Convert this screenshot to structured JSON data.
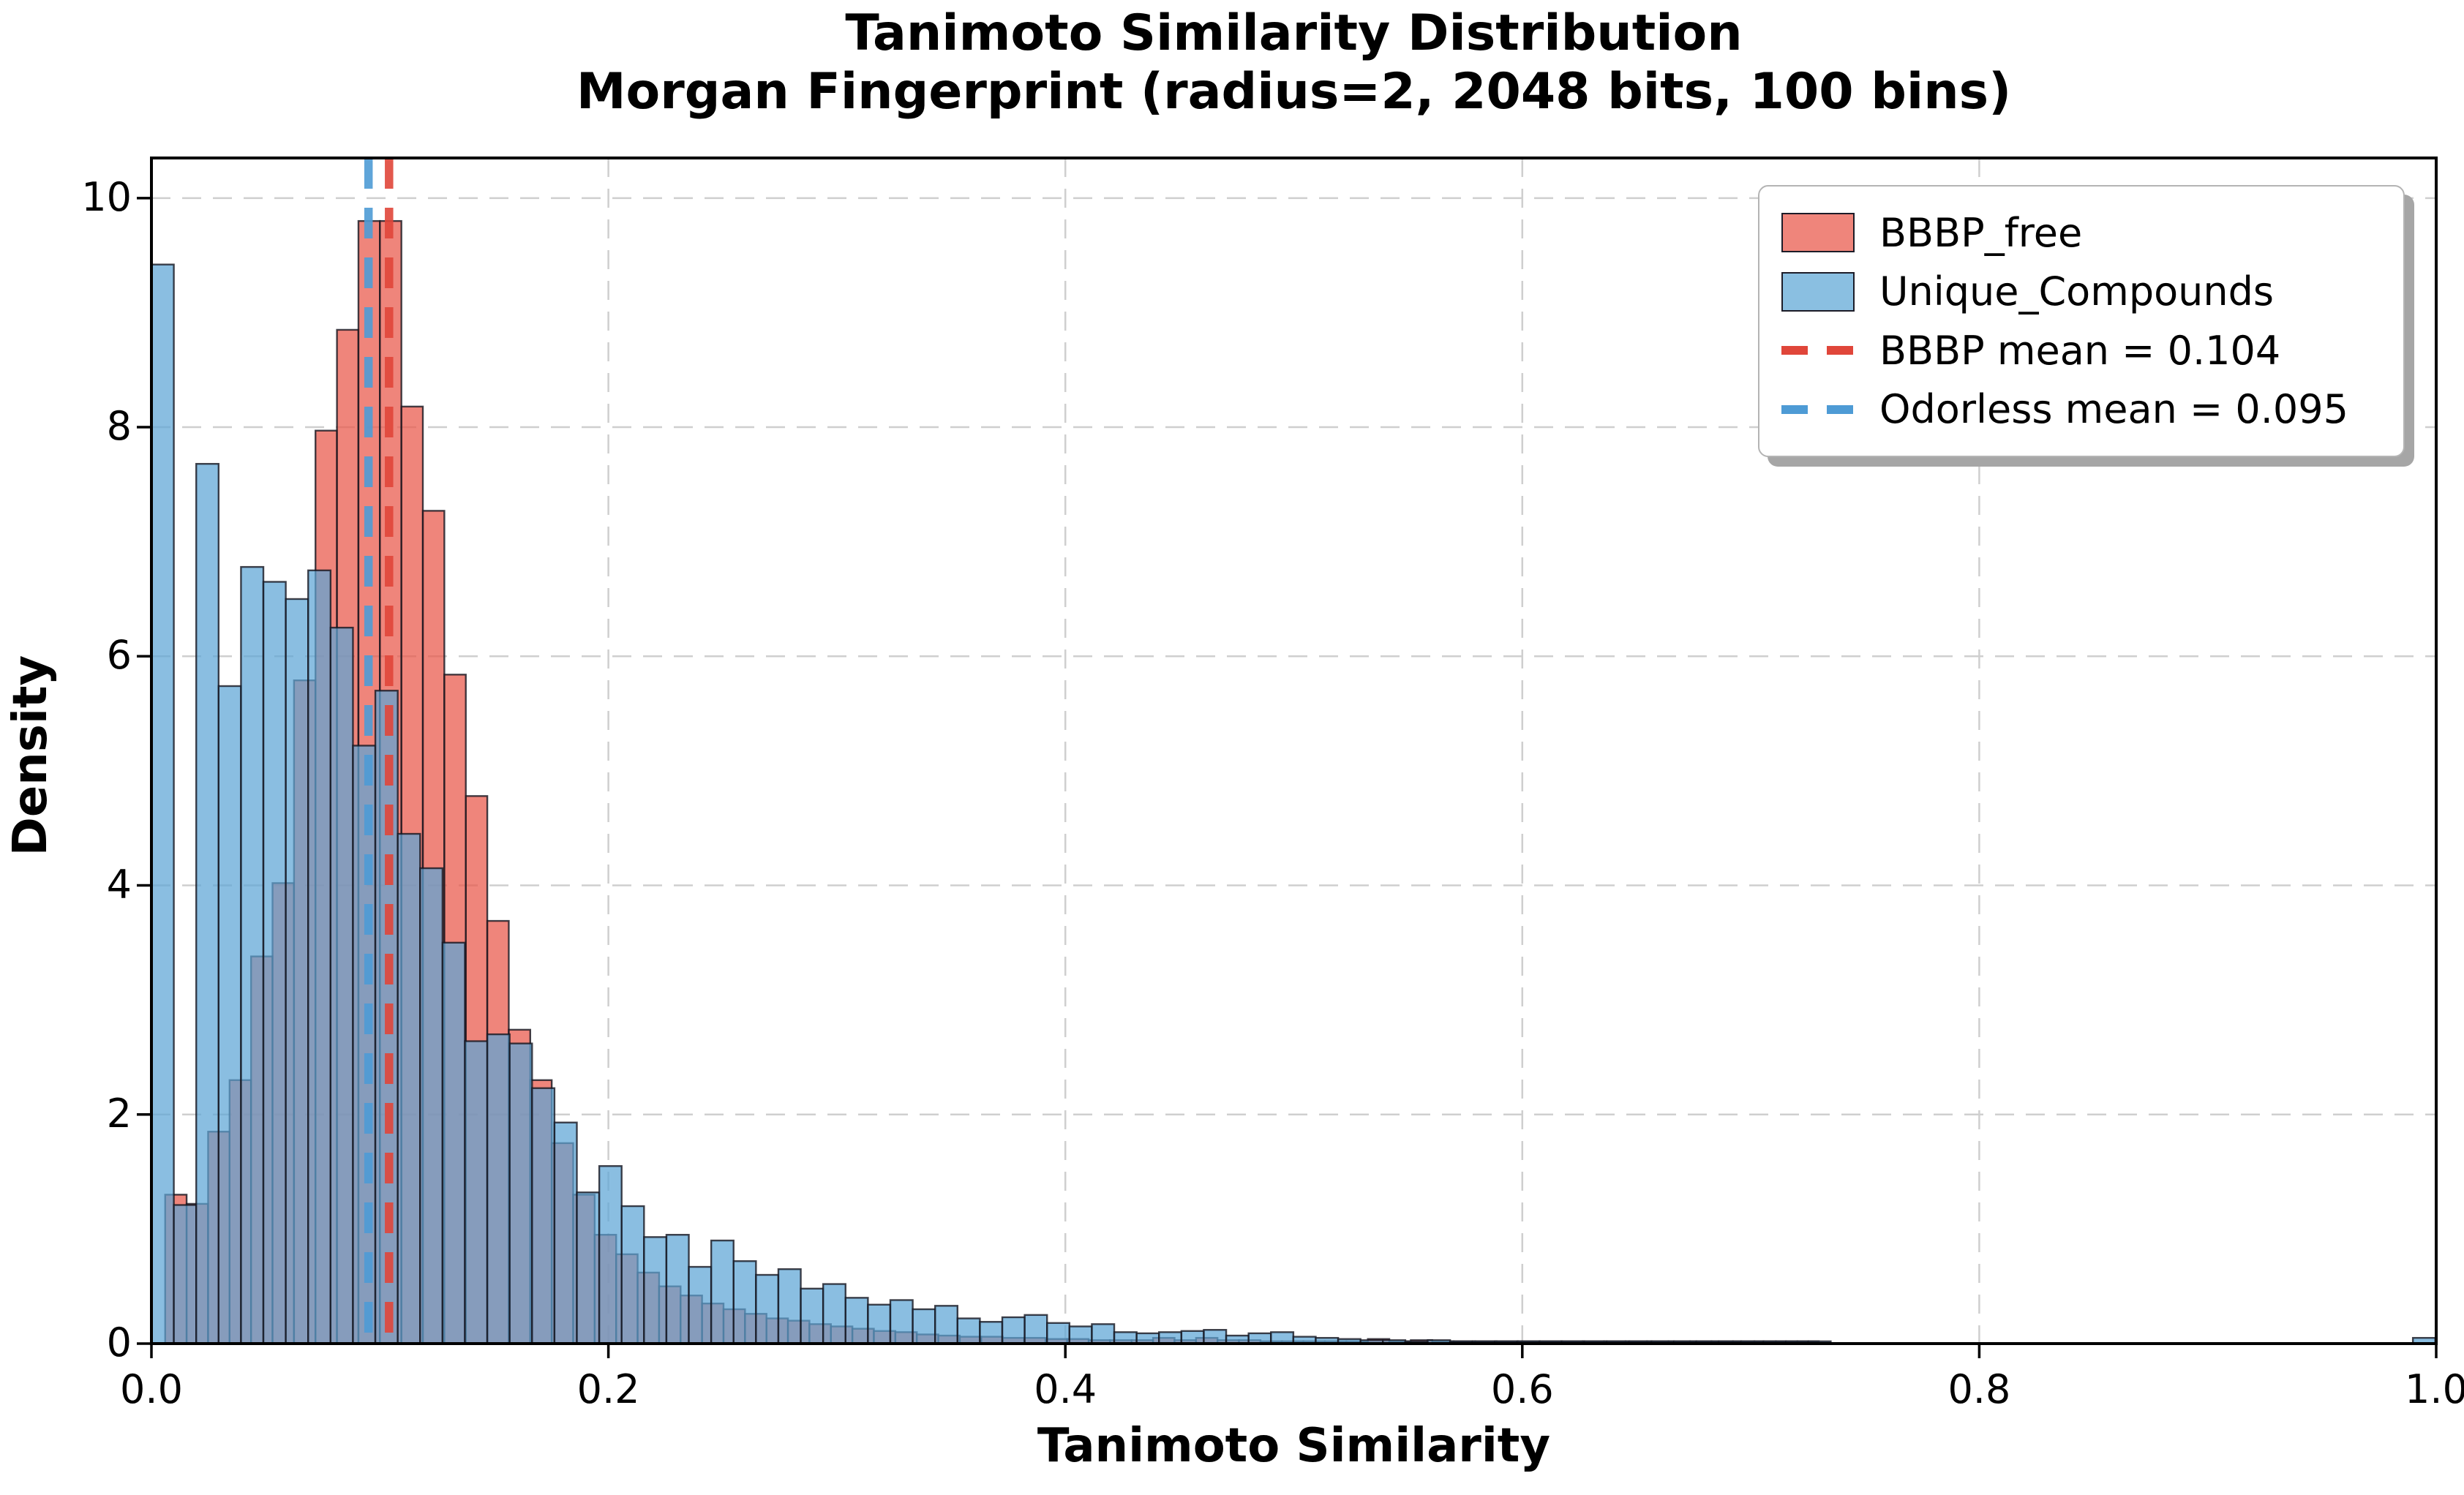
{
  "title": {
    "line1": "Tanimoto Similarity Distribution",
    "line2": "Morgan Fingerprint (radius=2, 2048 bits, 100 bins)"
  },
  "axes": {
    "xlabel": "Tanimoto Similarity",
    "ylabel": "Density",
    "x_tick_labels": [
      "0.0",
      "0.2",
      "0.4",
      "0.6",
      "0.8",
      "1.0"
    ],
    "x_tick_values": [
      0.0,
      0.2,
      0.4,
      0.6,
      0.8,
      1.0
    ],
    "y_tick_labels": [
      "0",
      "2",
      "4",
      "6",
      "8",
      "10"
    ],
    "y_tick_values": [
      0,
      2,
      4,
      6,
      8,
      10
    ],
    "xlim": [
      0.0,
      1.0
    ],
    "ylim": [
      0.0,
      10.35
    ],
    "grid": "dashed"
  },
  "legend": {
    "items": [
      {
        "label": "BBBP_free",
        "type": "patch",
        "color": "#EF857B"
      },
      {
        "label": "Unique_Compounds",
        "type": "patch",
        "color": "#8ABFE1"
      },
      {
        "label": "BBBP mean = 0.104",
        "type": "dash",
        "color": "#E0463A"
      },
      {
        "label": "Odorless mean = 0.095",
        "type": "dash",
        "color": "#4E9BD5"
      }
    ]
  },
  "chart_data": {
    "type": "bar",
    "subtype": "overlapping-density-histograms",
    "title": "Tanimoto Similarity Distribution — Morgan Fingerprint (radius=2, 2048 bits, 100 bins)",
    "xlabel": "Tanimoto Similarity",
    "ylabel": "Density",
    "xlim": [
      0.0,
      1.0
    ],
    "ylim": [
      0.0,
      10.35
    ],
    "legend_position": "upper right",
    "grid": true,
    "style": {
      "background": "#ffffff",
      "grid_color": "#cfcfcf",
      "spine_color": "#000000",
      "bar_edge_color": "#15151f",
      "bar_alpha": 0.72
    },
    "mean_lines": [
      {
        "label": "BBBP mean = 0.104",
        "value": 0.104,
        "color": "#E0463A"
      },
      {
        "label": "Odorless mean = 0.095",
        "value": 0.095,
        "color": "#4E9BD5"
      }
    ],
    "series": [
      {
        "name": "BBBP_free",
        "color": "#E95648",
        "bin_start": 0.006,
        "bin_width": 0.0094,
        "heights": [
          1.3,
          1.22,
          1.85,
          2.3,
          3.38,
          4.02,
          5.79,
          7.97,
          8.85,
          9.8,
          9.8,
          8.18,
          7.27,
          5.84,
          4.78,
          3.69,
          2.74,
          2.3,
          1.75,
          1.3,
          0.95,
          0.78,
          0.62,
          0.5,
          0.42,
          0.35,
          0.3,
          0.26,
          0.22,
          0.2,
          0.17,
          0.15,
          0.13,
          0.11,
          0.1,
          0.08,
          0.07,
          0.06,
          0.06,
          0.05,
          0.05,
          0.04,
          0.04,
          0.03,
          0.03,
          0.03,
          0.05,
          0.03,
          0.05,
          0.03,
          0.03,
          0.02,
          0.02,
          0.02,
          0.02,
          0.02,
          0.04,
          0.02,
          0.03,
          0.02,
          0.02,
          0.02,
          0.02,
          0.02,
          0.02,
          0.02,
          0.02,
          0.02,
          0.02,
          0.02,
          0.02,
          0.02,
          0.02,
          0.02,
          0.02,
          0.02,
          0.02,
          0
        ]
      },
      {
        "name": "Unique_Compounds",
        "color": "#5DA5D6",
        "bin_start": 0.0,
        "bin_width": 0.0098,
        "heights": [
          9.42,
          1.21,
          7.68,
          5.74,
          6.78,
          6.65,
          6.5,
          6.75,
          6.25,
          5.22,
          5.7,
          4.45,
          4.15,
          3.5,
          2.64,
          2.7,
          2.62,
          2.23,
          1.93,
          1.32,
          1.55,
          1.2,
          0.93,
          0.95,
          0.67,
          0.9,
          0.72,
          0.6,
          0.65,
          0.48,
          0.52,
          0.4,
          0.34,
          0.38,
          0.3,
          0.33,
          0.22,
          0.19,
          0.23,
          0.25,
          0.18,
          0.15,
          0.17,
          0.1,
          0.09,
          0.1,
          0.11,
          0.12,
          0.07,
          0.09,
          0.1,
          0.06,
          0.05,
          0.04,
          0.03,
          0.03,
          0.02,
          0.03,
          0.02,
          0.02,
          0.02,
          0.02,
          0.02,
          0.02,
          0.02,
          0.02,
          0.02,
          0.02,
          0.02,
          0.02,
          0.02,
          0.02,
          0.02,
          0.02,
          0.02,
          0,
          0,
          0,
          0,
          0,
          0,
          0,
          0,
          0,
          0,
          0,
          0,
          0,
          0,
          0,
          0,
          0,
          0,
          0,
          0,
          0,
          0,
          0,
          0,
          0,
          0,
          0.05
        ]
      }
    ]
  }
}
